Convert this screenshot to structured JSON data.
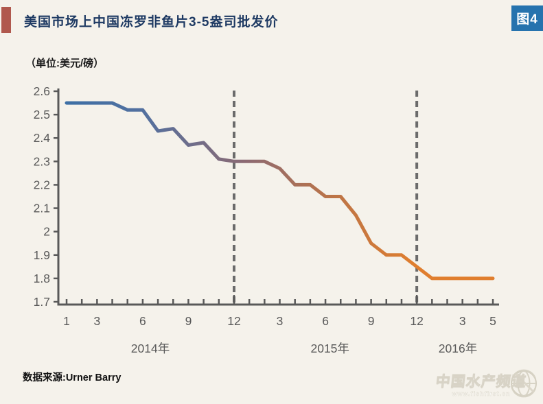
{
  "header": {
    "title": "美国市场上中国冻罗非鱼片3-5盎司批发价",
    "figure_badge": "图4",
    "unit_label": "（单位:美元/磅）"
  },
  "footer": {
    "source": "数据来源:Urner Barry",
    "watermark_text": "中国水产频道",
    "watermark_url": "www.fishfirst.cn"
  },
  "colors": {
    "background": "#f5f2eb",
    "title_text": "#1e3a63",
    "accent_bar": "#b0584d",
    "badge_bg": "#2673ae",
    "badge_text": "#ffffff",
    "axis": "#595959",
    "tick_label": "#595959",
    "dashed_line": "#6b6b6b",
    "line_gradient": [
      "#3d6fa5",
      "#53709f",
      "#8c6a73",
      "#bb7448",
      "#e07e2e"
    ]
  },
  "chart_data": {
    "type": "line",
    "title": "美国市场上中国冻罗非鱼片3-5盎司批发价",
    "unit": "美元/磅",
    "x": [
      "2014-1",
      "2014-2",
      "2014-3",
      "2014-4",
      "2014-5",
      "2014-6",
      "2014-7",
      "2014-8",
      "2014-9",
      "2014-10",
      "2014-11",
      "2014-12",
      "2015-1",
      "2015-2",
      "2015-3",
      "2015-4",
      "2015-5",
      "2015-6",
      "2015-7",
      "2015-8",
      "2015-9",
      "2015-10",
      "2015-11",
      "2015-12",
      "2016-1",
      "2016-2",
      "2016-3",
      "2016-4",
      "2016-5"
    ],
    "values": [
      2.55,
      2.55,
      2.55,
      2.55,
      2.52,
      2.52,
      2.43,
      2.44,
      2.37,
      2.38,
      2.31,
      2.3,
      2.3,
      2.3,
      2.27,
      2.2,
      2.2,
      2.15,
      2.15,
      2.07,
      1.95,
      1.9,
      1.9,
      1.85,
      1.8,
      1.8,
      1.8,
      1.8,
      1.8
    ],
    "ylim": [
      1.7,
      2.6
    ],
    "ytick_labels": [
      "2.6",
      "2.5",
      "2.4",
      "2.3",
      "2.2",
      "2.1",
      "2",
      "1.9",
      "1.8",
      "1.7"
    ],
    "xticks": [
      {
        "i": 0,
        "label": "1"
      },
      {
        "i": 2,
        "label": "3"
      },
      {
        "i": 5,
        "label": "6"
      },
      {
        "i": 8,
        "label": "9"
      },
      {
        "i": 11,
        "label": "12"
      },
      {
        "i": 14,
        "label": "3"
      },
      {
        "i": 17,
        "label": "6"
      },
      {
        "i": 20,
        "label": "9"
      },
      {
        "i": 23,
        "label": "12"
      },
      {
        "i": 26,
        "label": "3"
      },
      {
        "i": 28,
        "label": "5"
      }
    ],
    "year_labels": [
      {
        "label": "2014年",
        "center_i": 5.5
      },
      {
        "label": "2015年",
        "center_i": 17.3
      },
      {
        "label": "2016年",
        "center_i": 25.7
      }
    ],
    "dashed_boundaries_i": [
      11,
      23
    ],
    "grid": false,
    "legend": "none"
  }
}
